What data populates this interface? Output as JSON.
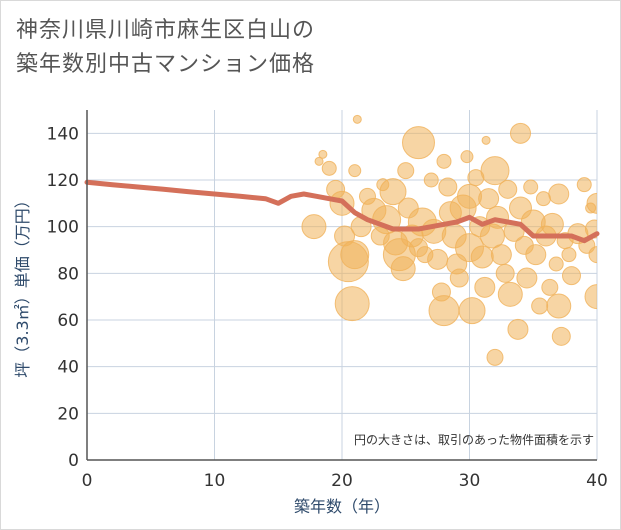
{
  "title_line1": "神奈川県川崎市麻生区白山の",
  "title_line2": "築年数別中古マンション価格",
  "chart_data": {
    "type": "scatter",
    "title": "神奈川県川崎市麻生区白山の築年数別中古マンション価格",
    "xlabel": "築年数（年）",
    "ylabel": "坪（3.3㎡）単価（万円）",
    "xlim": [
      0,
      40
    ],
    "ylim": [
      0,
      150
    ],
    "xticks": [
      0,
      10,
      20,
      30,
      40
    ],
    "yticks": [
      0,
      20,
      40,
      60,
      80,
      100,
      120,
      140
    ],
    "grid": true,
    "note": "円の大きさは、取引のあった物件面積を示す",
    "colors": {
      "bubble": "#f0b25a",
      "trend": "#d4705a",
      "grid": "#c8d3e0"
    },
    "trend_line": {
      "x": [
        0,
        2,
        4,
        6,
        8,
        10,
        12,
        14,
        15,
        16,
        17,
        18,
        19,
        20,
        21,
        22,
        23,
        24,
        25,
        26,
        27,
        28,
        29,
        30,
        31,
        32,
        33,
        34,
        35,
        36,
        37,
        38,
        39,
        40
      ],
      "y": [
        119,
        118,
        117,
        116,
        115,
        114,
        113,
        112,
        110,
        113,
        114,
        113,
        112,
        111,
        106,
        103,
        101,
        99,
        99,
        99,
        100,
        101,
        102,
        104,
        101,
        103,
        102,
        101,
        96,
        96,
        96,
        96,
        94,
        97
      ]
    },
    "bubbles": [
      {
        "x": 17.8,
        "y": 100,
        "r": 12
      },
      {
        "x": 18.2,
        "y": 128,
        "r": 4
      },
      {
        "x": 18.5,
        "y": 131,
        "r": 4
      },
      {
        "x": 19,
        "y": 125,
        "r": 7
      },
      {
        "x": 19.5,
        "y": 116,
        "r": 9
      },
      {
        "x": 20,
        "y": 110,
        "r": 12
      },
      {
        "x": 20.2,
        "y": 96,
        "r": 10
      },
      {
        "x": 20.5,
        "y": 85,
        "r": 20
      },
      {
        "x": 20.8,
        "y": 67,
        "r": 17
      },
      {
        "x": 21,
        "y": 88,
        "r": 14
      },
      {
        "x": 21.2,
        "y": 146,
        "r": 4
      },
      {
        "x": 21,
        "y": 124,
        "r": 6
      },
      {
        "x": 21.5,
        "y": 100,
        "r": 10
      },
      {
        "x": 22,
        "y": 113,
        "r": 8
      },
      {
        "x": 22.5,
        "y": 107,
        "r": 12
      },
      {
        "x": 23,
        "y": 96,
        "r": 9
      },
      {
        "x": 23.2,
        "y": 118,
        "r": 6
      },
      {
        "x": 23.5,
        "y": 103,
        "r": 14
      },
      {
        "x": 24,
        "y": 115,
        "r": 13
      },
      {
        "x": 24.2,
        "y": 93,
        "r": 12
      },
      {
        "x": 24.5,
        "y": 88,
        "r": 16
      },
      {
        "x": 24.8,
        "y": 82,
        "r": 12
      },
      {
        "x": 25,
        "y": 124,
        "r": 8
      },
      {
        "x": 25.2,
        "y": 108,
        "r": 10
      },
      {
        "x": 25.5,
        "y": 96,
        "r": 11
      },
      {
        "x": 26,
        "y": 136,
        "r": 16
      },
      {
        "x": 26,
        "y": 91,
        "r": 9
      },
      {
        "x": 26.3,
        "y": 102,
        "r": 14
      },
      {
        "x": 26.5,
        "y": 88,
        "r": 8
      },
      {
        "x": 27,
        "y": 120,
        "r": 7
      },
      {
        "x": 27.2,
        "y": 98,
        "r": 12
      },
      {
        "x": 27.5,
        "y": 86,
        "r": 10
      },
      {
        "x": 27.8,
        "y": 72,
        "r": 9
      },
      {
        "x": 28,
        "y": 128,
        "r": 7
      },
      {
        "x": 28,
        "y": 64,
        "r": 15
      },
      {
        "x": 28.3,
        "y": 117,
        "r": 9
      },
      {
        "x": 28.5,
        "y": 106,
        "r": 11
      },
      {
        "x": 28.8,
        "y": 96,
        "r": 12
      },
      {
        "x": 29,
        "y": 84,
        "r": 10
      },
      {
        "x": 29.2,
        "y": 78,
        "r": 9
      },
      {
        "x": 29.5,
        "y": 108,
        "r": 13
      },
      {
        "x": 29.8,
        "y": 130,
        "r": 6
      },
      {
        "x": 30,
        "y": 113,
        "r": 12
      },
      {
        "x": 30,
        "y": 91,
        "r": 14
      },
      {
        "x": 30.2,
        "y": 64,
        "r": 13
      },
      {
        "x": 30.5,
        "y": 121,
        "r": 8
      },
      {
        "x": 30.8,
        "y": 100,
        "r": 10
      },
      {
        "x": 31,
        "y": 87,
        "r": 11
      },
      {
        "x": 31.2,
        "y": 74,
        "r": 10
      },
      {
        "x": 31.3,
        "y": 137,
        "r": 4
      },
      {
        "x": 31.5,
        "y": 112,
        "r": 10
      },
      {
        "x": 31.8,
        "y": 96,
        "r": 12
      },
      {
        "x": 32,
        "y": 44,
        "r": 8
      },
      {
        "x": 32,
        "y": 124,
        "r": 14
      },
      {
        "x": 32.2,
        "y": 104,
        "r": 11
      },
      {
        "x": 32.5,
        "y": 88,
        "r": 10
      },
      {
        "x": 32.8,
        "y": 80,
        "r": 9
      },
      {
        "x": 33,
        "y": 116,
        "r": 9
      },
      {
        "x": 33.2,
        "y": 71,
        "r": 12
      },
      {
        "x": 33.5,
        "y": 98,
        "r": 10
      },
      {
        "x": 33.8,
        "y": 56,
        "r": 10
      },
      {
        "x": 34,
        "y": 140,
        "r": 10
      },
      {
        "x": 34,
        "y": 108,
        "r": 11
      },
      {
        "x": 34.3,
        "y": 92,
        "r": 9
      },
      {
        "x": 34.5,
        "y": 78,
        "r": 10
      },
      {
        "x": 34.8,
        "y": 117,
        "r": 7
      },
      {
        "x": 35,
        "y": 102,
        "r": 12
      },
      {
        "x": 35.2,
        "y": 88,
        "r": 10
      },
      {
        "x": 35.5,
        "y": 66,
        "r": 8
      },
      {
        "x": 35.8,
        "y": 112,
        "r": 7
      },
      {
        "x": 36,
        "y": 96,
        "r": 10
      },
      {
        "x": 36.3,
        "y": 74,
        "r": 8
      },
      {
        "x": 36.5,
        "y": 101,
        "r": 11
      },
      {
        "x": 36.8,
        "y": 84,
        "r": 7
      },
      {
        "x": 37,
        "y": 114,
        "r": 10
      },
      {
        "x": 37,
        "y": 66,
        "r": 12
      },
      {
        "x": 37.2,
        "y": 53,
        "r": 9
      },
      {
        "x": 37.5,
        "y": 94,
        "r": 8
      },
      {
        "x": 37.8,
        "y": 88,
        "r": 7
      },
      {
        "x": 38,
        "y": 79,
        "r": 9
      },
      {
        "x": 38.5,
        "y": 97,
        "r": 10
      },
      {
        "x": 39,
        "y": 118,
        "r": 7
      },
      {
        "x": 39.2,
        "y": 92,
        "r": 8
      },
      {
        "x": 39.5,
        "y": 108,
        "r": 5
      },
      {
        "x": 39.8,
        "y": 99,
        "r": 9
      },
      {
        "x": 40,
        "y": 110,
        "r": 10
      },
      {
        "x": 40,
        "y": 70,
        "r": 12
      },
      {
        "x": 40,
        "y": 88,
        "r": 8
      }
    ]
  }
}
